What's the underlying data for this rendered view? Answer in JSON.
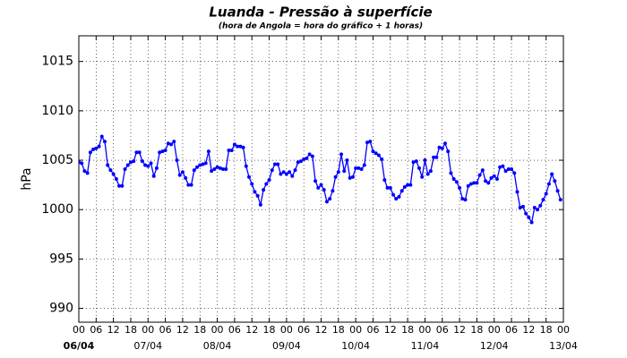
{
  "chart_data": {
    "type": "line",
    "title": "Luanda - Pressão à superfície",
    "subtitle": "(hora de Angola = hora do gráfico + 1 horas)",
    "y_label": "hPa",
    "x": [
      0,
      1,
      2,
      3,
      4,
      5,
      6,
      7,
      8,
      9,
      10,
      11,
      12,
      13,
      14,
      15,
      16,
      17,
      18,
      19,
      20,
      21,
      22,
      23,
      24,
      25,
      26,
      27,
      28,
      29,
      30,
      31,
      32,
      33,
      34,
      35,
      36,
      37,
      38,
      39,
      40,
      41,
      42,
      43,
      44,
      45,
      46,
      47,
      48,
      49,
      50,
      51,
      52,
      53,
      54,
      55,
      56,
      57,
      58,
      59,
      60,
      61,
      62,
      63,
      64,
      65,
      66,
      67,
      68,
      69,
      70,
      71,
      72,
      73,
      74,
      75,
      76,
      77,
      78,
      79,
      80,
      81,
      82,
      83,
      84,
      85,
      86,
      87,
      88,
      89,
      90,
      91,
      92,
      93,
      94,
      95,
      96,
      97,
      98,
      99,
      100,
      101,
      102,
      103,
      104,
      105,
      106,
      107,
      108,
      109,
      110,
      111,
      112,
      113,
      114,
      115,
      116,
      117,
      118,
      119,
      120,
      121,
      122,
      123,
      124,
      125,
      126,
      127,
      128,
      129,
      130,
      131,
      132,
      133,
      134,
      135,
      136,
      137,
      138,
      139,
      140,
      141,
      142,
      143,
      144,
      145,
      146,
      147,
      148,
      149,
      150,
      151,
      152,
      153,
      154,
      155,
      156,
      157,
      158,
      159,
      160,
      161,
      162,
      163,
      164,
      165,
      166,
      167
    ],
    "series": [
      {
        "name": "Pressão",
        "color": "#0000ff",
        "values": [
          1004.8,
          1004.7,
          1003.9,
          1003.7,
          1005.8,
          1006.1,
          1006.2,
          1006.4,
          1007.4,
          1006.9,
          1004.5,
          1004.0,
          1003.6,
          1003.1,
          1002.4,
          1002.4,
          1004.1,
          1004.5,
          1004.8,
          1004.9,
          1005.8,
          1005.8,
          1004.9,
          1004.5,
          1004.4,
          1004.7,
          1003.4,
          1004.2,
          1005.8,
          1005.9,
          1006.0,
          1006.7,
          1006.6,
          1006.9,
          1005.0,
          1003.5,
          1003.8,
          1003.2,
          1002.5,
          1002.5,
          1004.0,
          1004.3,
          1004.5,
          1004.6,
          1004.7,
          1005.9,
          1003.9,
          1004.1,
          1004.3,
          1004.2,
          1004.1,
          1004.1,
          1006.0,
          1006.0,
          1006.6,
          1006.4,
          1006.4,
          1006.3,
          1004.4,
          1003.3,
          1002.6,
          1001.8,
          1001.4,
          1000.5,
          1002.0,
          1002.6,
          1003.0,
          1004.0,
          1004.6,
          1004.6,
          1003.6,
          1003.8,
          1003.6,
          1003.8,
          1003.4,
          1004.0,
          1004.8,
          1004.9,
          1005.1,
          1005.2,
          1005.6,
          1005.4,
          1002.9,
          1002.2,
          1002.5,
          1002.0,
          1000.8,
          1001.1,
          1001.9,
          1003.3,
          1003.8,
          1005.6,
          1003.9,
          1005.0,
          1003.2,
          1003.3,
          1004.2,
          1004.2,
          1004.1,
          1004.5,
          1006.8,
          1006.9,
          1005.9,
          1005.7,
          1005.5,
          1005.1,
          1003.0,
          1002.2,
          1002.2,
          1001.5,
          1001.1,
          1001.3,
          1001.9,
          1002.3,
          1002.5,
          1002.5,
          1004.8,
          1004.9,
          1004.2,
          1003.3,
          1005.0,
          1003.6,
          1003.9,
          1005.3,
          1005.3,
          1006.3,
          1006.2,
          1006.7,
          1005.9,
          1003.7,
          1003.1,
          1002.8,
          1002.2,
          1001.1,
          1001.0,
          1002.4,
          1002.6,
          1002.7,
          1002.7,
          1003.5,
          1004.0,
          1002.9,
          1002.7,
          1003.2,
          1003.4,
          1003.1,
          1004.3,
          1004.4,
          1003.9,
          1004.1,
          1004.1,
          1003.7,
          1001.8,
          1000.2,
          1000.3,
          999.6,
          999.2,
          998.7,
          1000.2,
          1000.0,
          1000.4,
          1001.0,
          1001.6,
          1002.6,
          1003.6,
          1002.9,
          1001.9,
          1001.0
        ]
      }
    ],
    "xlim": [
      0,
      168
    ],
    "ylim": [
      988.6,
      1017.6
    ],
    "yticks": [
      990,
      995,
      1000,
      1005,
      1010,
      1015
    ],
    "xticks": [
      {
        "value": 0,
        "label": "00"
      },
      {
        "value": 6,
        "label": "06"
      },
      {
        "value": 12,
        "label": "12"
      },
      {
        "value": 18,
        "label": "18"
      },
      {
        "value": 24,
        "label": "00"
      },
      {
        "value": 30,
        "label": "06"
      },
      {
        "value": 36,
        "label": "12"
      },
      {
        "value": 42,
        "label": "18"
      },
      {
        "value": 48,
        "label": "00"
      },
      {
        "value": 54,
        "label": "06"
      },
      {
        "value": 60,
        "label": "12"
      },
      {
        "value": 66,
        "label": "18"
      },
      {
        "value": 72,
        "label": "00"
      },
      {
        "value": 78,
        "label": "06"
      },
      {
        "value": 84,
        "label": "12"
      },
      {
        "value": 90,
        "label": "18"
      },
      {
        "value": 96,
        "label": "00"
      },
      {
        "value": 102,
        "label": "06"
      },
      {
        "value": 108,
        "label": "12"
      },
      {
        "value": 114,
        "label": "18"
      },
      {
        "value": 120,
        "label": "00"
      },
      {
        "value": 126,
        "label": "06"
      },
      {
        "value": 132,
        "label": "12"
      },
      {
        "value": 138,
        "label": "18"
      },
      {
        "value": 144,
        "label": "00"
      },
      {
        "value": 150,
        "label": "06"
      },
      {
        "value": 156,
        "label": "12"
      },
      {
        "value": 162,
        "label": "18"
      },
      {
        "value": 168,
        "label": "00"
      }
    ],
    "x_dates": [
      {
        "value": 0,
        "label": "06/04"
      },
      {
        "value": 24,
        "label": "07/04"
      },
      {
        "value": 48,
        "label": "08/04"
      },
      {
        "value": 72,
        "label": "09/04"
      },
      {
        "value": 96,
        "label": "10/04"
      },
      {
        "value": 120,
        "label": "11/04"
      },
      {
        "value": 144,
        "label": "12/04"
      },
      {
        "value": 168,
        "label": "13/04"
      }
    ],
    "grid": true
  }
}
